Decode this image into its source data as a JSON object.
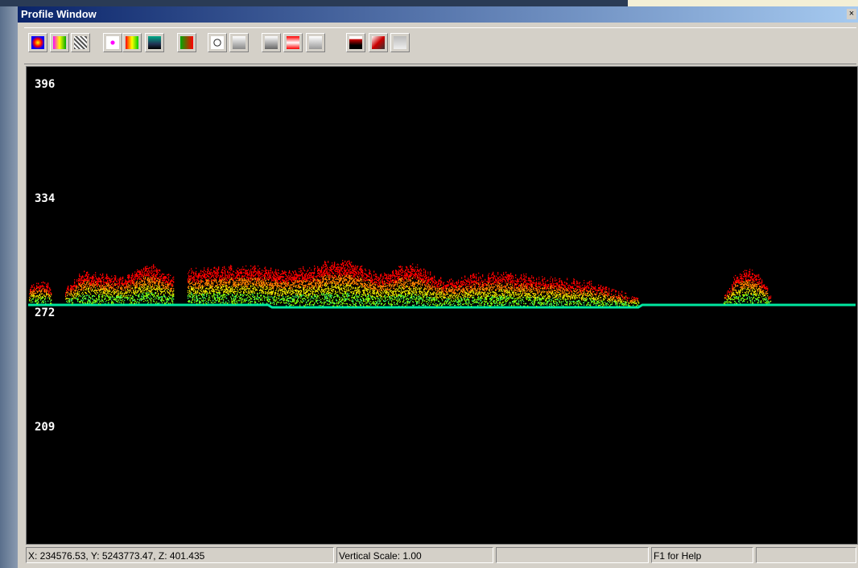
{
  "window": {
    "title": "Profile Window",
    "close_label": "×"
  },
  "profile": {
    "elevation_labels": [
      396,
      334,
      272,
      209
    ]
  },
  "status_bar": {
    "coordinates": "X: 234576.53, Y: 5243773.47, Z: 401.435",
    "vertical_scale": "Vertical Scale: 1.00",
    "help": "F1 for Help"
  }
}
